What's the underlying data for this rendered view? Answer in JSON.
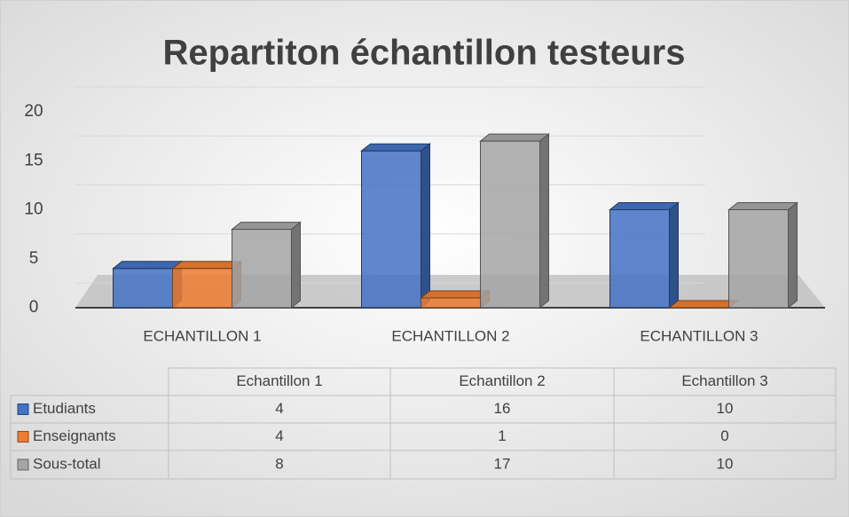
{
  "chart_data": {
    "type": "bar3d",
    "title": "Repartiton échantillon testeurs",
    "categories": [
      "ECHANTILLON 1",
      "ECHANTILLON 2",
      "ECHANTILLON 3"
    ],
    "table_columns": [
      "Echantillon 1",
      "Echantillon 2",
      "Echantillon 3"
    ],
    "series": [
      {
        "name": "Etudiants",
        "color": "#4472c4",
        "values": [
          4,
          16,
          10
        ]
      },
      {
        "name": "Enseignants",
        "color": "#ed7d31",
        "values": [
          4,
          1,
          0
        ]
      },
      {
        "name": "Sous-total",
        "color": "#a5a5a5",
        "values": [
          8,
          17,
          10
        ]
      }
    ],
    "ylim": [
      0,
      20
    ],
    "yticks": [
      0,
      5,
      10,
      15,
      20
    ],
    "grid": true
  }
}
